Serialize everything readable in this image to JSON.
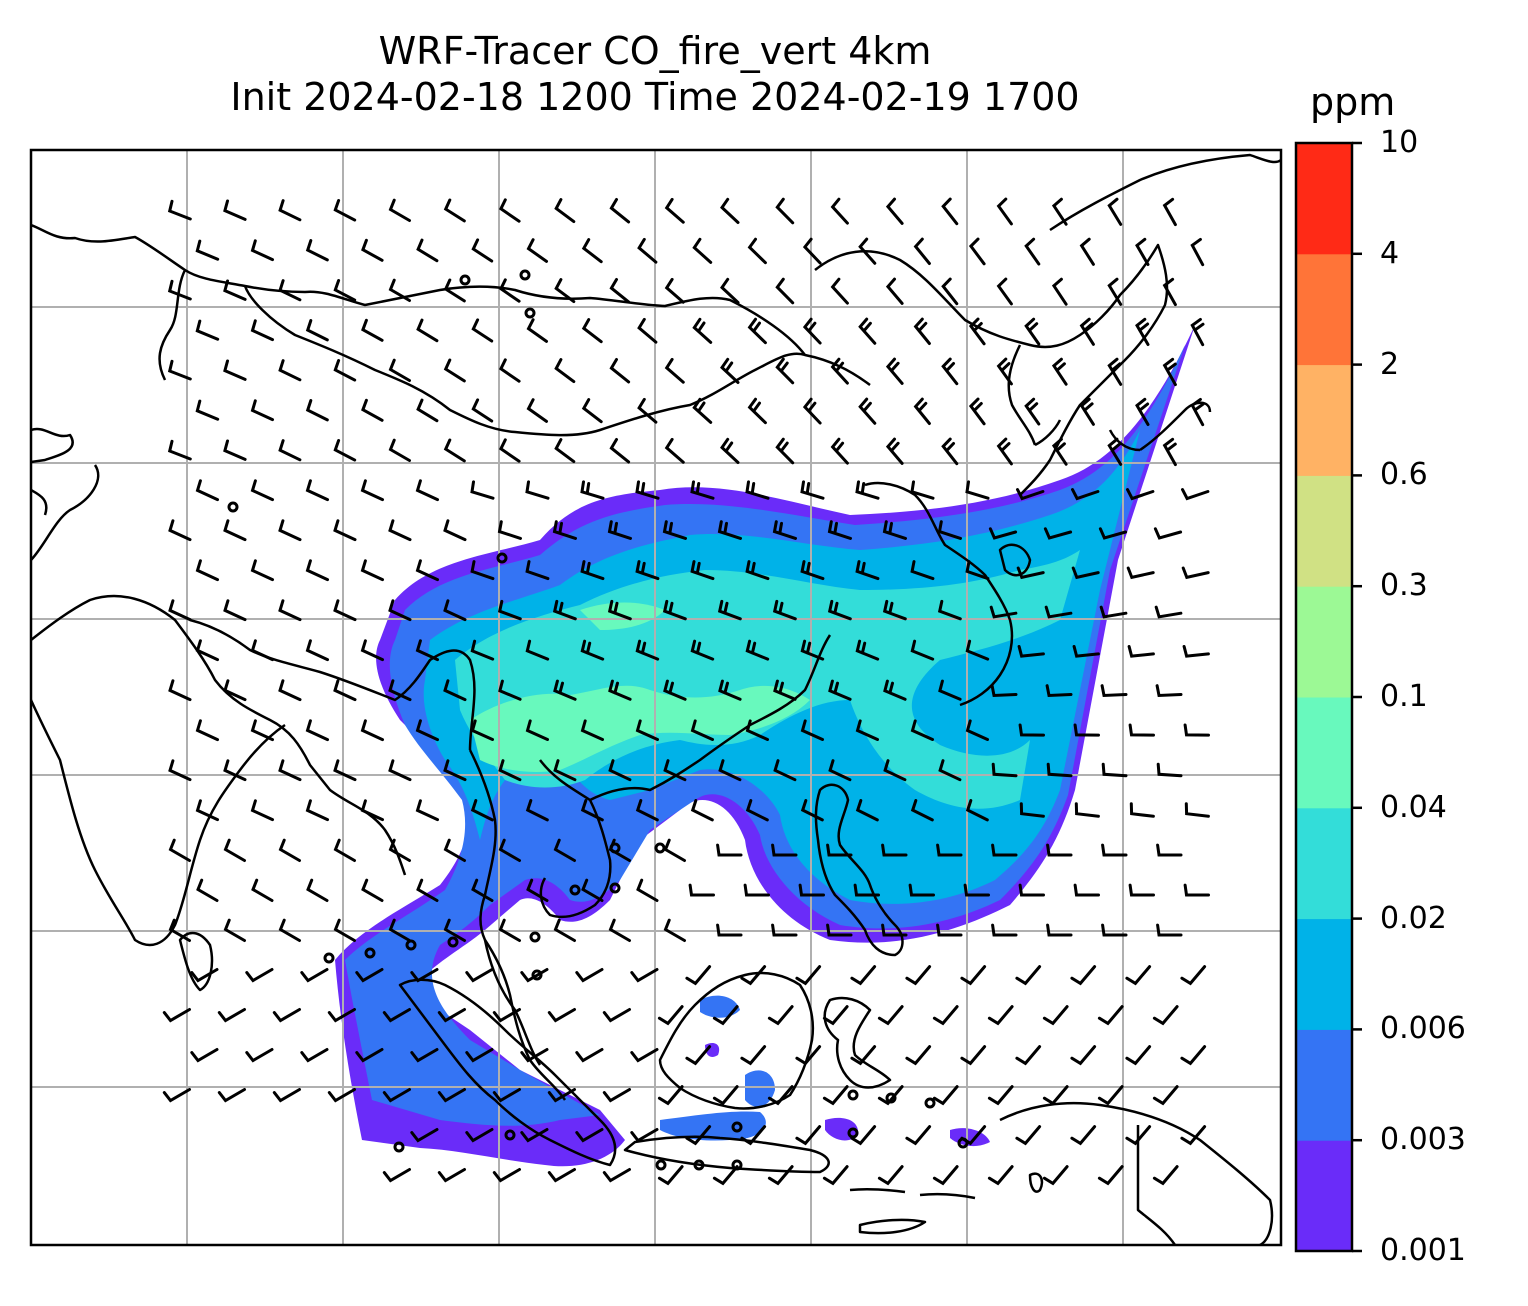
{
  "title_line1": "WRF-Tracer CO_fire_vert 4km",
  "title_line2": "Init 2024-02-18 1200 Time 2024-02-19 1700",
  "colorbar": {
    "unit": "ppm",
    "levels": [
      "0.001",
      "0.003",
      "0.006",
      "0.02",
      "0.04",
      "0.1",
      "0.3",
      "0.6",
      "2",
      "4",
      "10"
    ],
    "colors": [
      "#6a2cf9",
      "#3474f4",
      "#00b2e8",
      "#33ddd9",
      "#68f9bd",
      "#9cf995",
      "#d0e184",
      "#ffb264",
      "#ff7438",
      "#ff2a16"
    ]
  },
  "map": {
    "background": "#ffffff",
    "gridline_color": "#b0b0b0",
    "coastline_color": "#000000",
    "barb_color": "#000000",
    "plume_dominant_level": "0.006-0.02"
  }
}
